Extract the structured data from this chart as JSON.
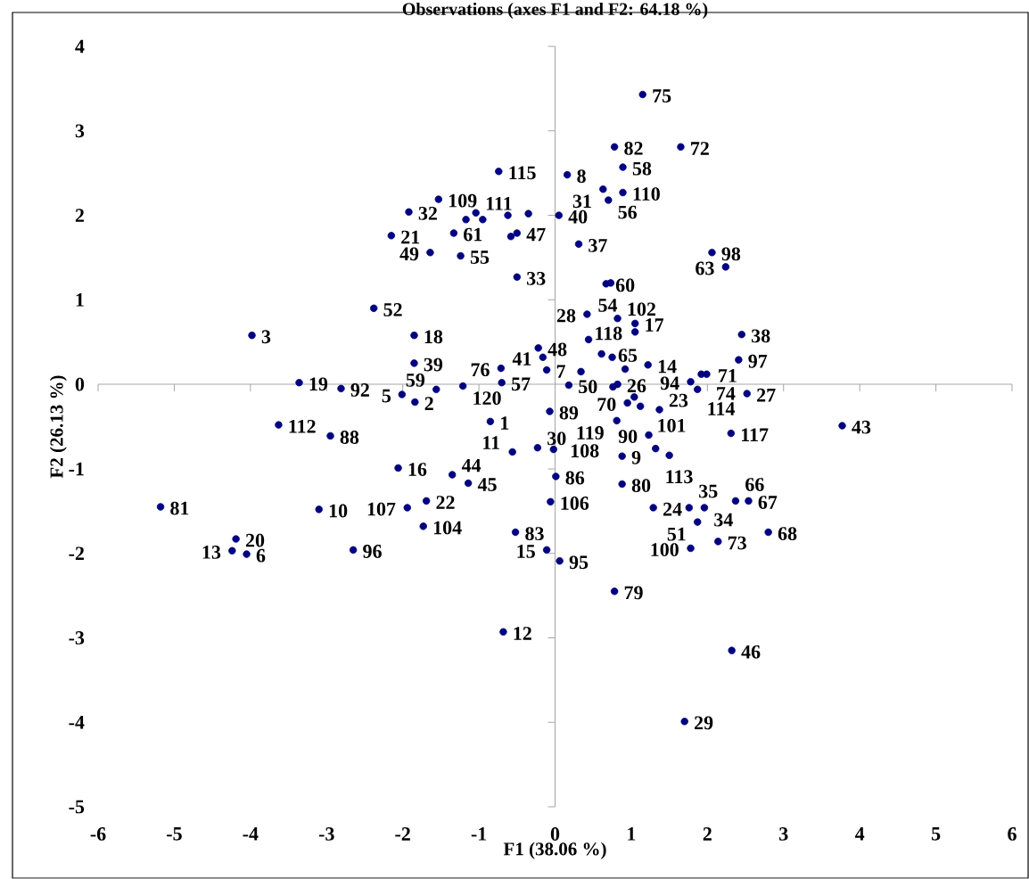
{
  "chart_data": {
    "type": "scatter",
    "title": "Observations (axes F1 and F2: 64.18 %)",
    "xlabel": "F1 (38.06 %)",
    "ylabel": "F2 (26.13 %)",
    "x": [
      1.15,
      0.78,
      1.65,
      -0.74,
      0.16,
      0.89,
      0.63,
      0.7,
      0.89,
      -1.53,
      -1.92,
      -1.04,
      0.05,
      -0.5,
      -1.33,
      -2.15,
      -1.64,
      -1.24,
      0.31,
      -0.5,
      2.06,
      2.24,
      0.67,
      -2.38,
      -3.98,
      -1.85,
      -1.85,
      -3.36,
      -2.81,
      -2.01,
      -1.84,
      -1.56,
      -1.21,
      -0.7,
      -3.63,
      -2.95,
      -2.06,
      -1.35,
      -1.14,
      -5.18,
      -3.1,
      -1.94,
      -1.69,
      -1.73,
      -4.19,
      -4.24,
      -4.05,
      -2.65,
      -0.22,
      -0.16,
      -0.11,
      -0.71,
      0.42,
      0.82,
      1.05,
      1.05,
      0.44,
      2.45,
      2.41,
      0.61,
      1.22,
      1.92,
      1.99,
      1.78,
      1.87,
      2.52,
      0.18,
      0.82,
      0.95,
      1.12,
      1.37,
      -0.07,
      -0.85,
      0.81,
      2.31,
      3.77,
      1.23,
      1.32,
      0.88,
      -0.56,
      -0.23,
      -0.02,
      0.01,
      0.88,
      -0.06,
      -0.52,
      -0.11,
      0.06,
      0.78,
      -0.68,
      2.32,
      1.7,
      1.29,
      1.76,
      1.96,
      1.87,
      2.37,
      2.54,
      1.78,
      2.14,
      2.8,
      -1.17,
      -0.95,
      -0.62,
      -0.35,
      -0.58,
      0.73,
      0.92,
      0.75,
      0.34,
      1.04,
      0.76,
      1.5
    ],
    "values": [
      3.43,
      2.81,
      2.81,
      2.52,
      2.48,
      2.57,
      2.31,
      2.18,
      2.27,
      2.19,
      2.04,
      2.03,
      2.0,
      1.79,
      1.79,
      1.76,
      1.56,
      1.52,
      1.66,
      1.27,
      1.56,
      1.39,
      1.19,
      0.9,
      0.58,
      0.58,
      0.25,
      0.02,
      -0.05,
      -0.12,
      -0.21,
      -0.06,
      -0.02,
      0.02,
      -0.48,
      -0.61,
      -0.99,
      -1.07,
      -1.17,
      -1.45,
      -1.48,
      -1.46,
      -1.38,
      -1.68,
      -1.83,
      -1.97,
      -2.01,
      -1.96,
      0.43,
      0.32,
      0.17,
      0.19,
      0.83,
      0.78,
      0.72,
      0.62,
      0.53,
      0.59,
      0.29,
      0.36,
      0.23,
      0.12,
      0.12,
      0.03,
      -0.06,
      -0.11,
      -0.01,
      0.0,
      -0.22,
      -0.26,
      -0.3,
      -0.32,
      -0.44,
      -0.43,
      -0.58,
      -0.49,
      -0.6,
      -0.76,
      -0.85,
      -0.8,
      -0.75,
      -0.77,
      -1.09,
      -1.18,
      -1.39,
      -1.75,
      -1.96,
      -2.09,
      -2.45,
      -2.93,
      -3.15,
      -3.99,
      -1.46,
      -1.46,
      -1.46,
      -1.63,
      -1.38,
      -1.38,
      -1.94,
      -1.86,
      -1.75,
      1.95,
      1.95,
      2.0,
      2.02,
      1.75,
      1.2,
      0.18,
      0.32,
      0.15,
      -0.15,
      -0.03,
      -0.84
    ],
    "color": "#000080",
    "marker": "circle",
    "xlim": [
      -6,
      6
    ],
    "ylim": [
      -5,
      4
    ],
    "xticks": [
      -6,
      -5,
      -4,
      -3,
      -2,
      -1,
      0,
      1,
      2,
      3,
      4,
      5,
      6
    ],
    "yticks": [
      -5,
      -4,
      -3,
      -2,
      -1,
      0,
      1,
      2,
      3,
      4
    ],
    "annotations": [
      {
        "text": "75",
        "x": 1.15,
        "y": 3.43
      },
      {
        "text": "82",
        "x": 0.78,
        "y": 2.81
      },
      {
        "text": "72",
        "x": 1.65,
        "y": 2.81
      },
      {
        "text": "115",
        "x": -0.74,
        "y": 2.52
      },
      {
        "text": "8",
        "x": 0.16,
        "y": 2.48
      },
      {
        "text": "58",
        "x": 0.89,
        "y": 2.57
      },
      {
        "text": "31",
        "x": 0.63,
        "y": 2.31
      },
      {
        "text": "56",
        "x": 0.7,
        "y": 2.18
      },
      {
        "text": "110",
        "x": 0.89,
        "y": 2.27
      },
      {
        "text": "109",
        "x": -1.53,
        "y": 2.19
      },
      {
        "text": "32",
        "x": -1.92,
        "y": 2.04
      },
      {
        "text": "111",
        "x": -1.04,
        "y": 2.03
      },
      {
        "text": "40",
        "x": 0.05,
        "y": 2.0
      },
      {
        "text": "47",
        "x": -0.5,
        "y": 1.79
      },
      {
        "text": "61",
        "x": -1.33,
        "y": 1.79
      },
      {
        "text": "21",
        "x": -2.15,
        "y": 1.76
      },
      {
        "text": "49",
        "x": -1.64,
        "y": 1.56
      },
      {
        "text": "55",
        "x": -1.24,
        "y": 1.52
      },
      {
        "text": "37",
        "x": 0.31,
        "y": 1.66
      },
      {
        "text": "33",
        "x": -0.5,
        "y": 1.27
      },
      {
        "text": "98",
        "x": 2.06,
        "y": 1.56
      },
      {
        "text": "63",
        "x": 2.24,
        "y": 1.39
      },
      {
        "text": "60",
        "x": 0.67,
        "y": 1.19
      },
      {
        "text": "52",
        "x": -2.38,
        "y": 0.9
      },
      {
        "text": "3",
        "x": -3.98,
        "y": 0.58
      },
      {
        "text": "18",
        "x": -1.85,
        "y": 0.58
      },
      {
        "text": "39",
        "x": -1.85,
        "y": 0.25
      },
      {
        "text": "19",
        "x": -3.36,
        "y": 0.02
      },
      {
        "text": "92",
        "x": -2.81,
        "y": -0.05
      },
      {
        "text": "5",
        "x": -2.01,
        "y": -0.12
      },
      {
        "text": "2",
        "x": -1.84,
        "y": -0.21
      },
      {
        "text": "59",
        "x": -1.56,
        "y": -0.06
      },
      {
        "text": "120",
        "x": -1.21,
        "y": -0.02
      },
      {
        "text": "57",
        "x": -0.7,
        "y": 0.02
      },
      {
        "text": "112",
        "x": -3.63,
        "y": -0.48
      },
      {
        "text": "88",
        "x": -2.95,
        "y": -0.61
      },
      {
        "text": "16",
        "x": -2.06,
        "y": -0.99
      },
      {
        "text": "44",
        "x": -1.35,
        "y": -1.07
      },
      {
        "text": "45",
        "x": -1.14,
        "y": -1.17
      },
      {
        "text": "81",
        "x": -5.18,
        "y": -1.45
      },
      {
        "text": "10",
        "x": -3.1,
        "y": -1.48
      },
      {
        "text": "107",
        "x": -1.94,
        "y": -1.46
      },
      {
        "text": "22",
        "x": -1.69,
        "y": -1.38
      },
      {
        "text": "104",
        "x": -1.73,
        "y": -1.68
      },
      {
        "text": "20",
        "x": -4.19,
        "y": -1.83
      },
      {
        "text": "13",
        "x": -4.24,
        "y": -1.97
      },
      {
        "text": "6",
        "x": -4.05,
        "y": -2.01
      },
      {
        "text": "96",
        "x": -2.65,
        "y": -1.96
      },
      {
        "text": "48",
        "x": -0.22,
        "y": 0.43
      },
      {
        "text": "41",
        "x": -0.16,
        "y": 0.32
      },
      {
        "text": "7",
        "x": -0.11,
        "y": 0.17
      },
      {
        "text": "76",
        "x": -0.71,
        "y": 0.19
      },
      {
        "text": "28",
        "x": 0.42,
        "y": 0.83
      },
      {
        "text": "102",
        "x": 0.82,
        "y": 0.78
      },
      {
        "text": "17",
        "x": 1.05,
        "y": 0.72
      },
      {
        "text": "118",
        "x": 1.05,
        "y": 0.62
      },
      {
        "text": "54",
        "x": 0.44,
        "y": 0.53
      },
      {
        "text": "38",
        "x": 2.45,
        "y": 0.59
      },
      {
        "text": "97",
        "x": 2.41,
        "y": 0.29
      },
      {
        "text": "65",
        "x": 0.61,
        "y": 0.36
      },
      {
        "text": "14",
        "x": 1.22,
        "y": 0.23
      },
      {
        "text": "71",
        "x": 1.92,
        "y": 0.12
      },
      {
        "text": "74",
        "x": 1.99,
        "y": 0.12
      },
      {
        "text": "94",
        "x": 1.78,
        "y": 0.03
      },
      {
        "text": "114",
        "x": 1.87,
        "y": -0.06
      },
      {
        "text": "27",
        "x": 2.52,
        "y": -0.11
      },
      {
        "text": "50",
        "x": 0.18,
        "y": -0.01
      },
      {
        "text": "26",
        "x": 0.82,
        "y": 0.0
      },
      {
        "text": "70",
        "x": 0.95,
        "y": -0.22
      },
      {
        "text": "101",
        "x": 1.12,
        "y": -0.26
      },
      {
        "text": "23",
        "x": 1.37,
        "y": -0.3
      },
      {
        "text": "89",
        "x": -0.07,
        "y": -0.32
      },
      {
        "text": "1",
        "x": -0.85,
        "y": -0.44
      },
      {
        "text": "119",
        "x": 0.81,
        "y": -0.43
      },
      {
        "text": "117",
        "x": 2.31,
        "y": -0.58
      },
      {
        "text": "43",
        "x": 3.77,
        "y": -0.49
      },
      {
        "text": "90",
        "x": 1.23,
        "y": -0.6
      },
      {
        "text": "113",
        "x": 1.32,
        "y": -0.76
      },
      {
        "text": "9",
        "x": 0.88,
        "y": -0.85
      },
      {
        "text": "11",
        "x": -0.56,
        "y": -0.8
      },
      {
        "text": "30",
        "x": -0.23,
        "y": -0.75
      },
      {
        "text": "108",
        "x": -0.02,
        "y": -0.77
      },
      {
        "text": "86",
        "x": 0.01,
        "y": -1.09
      },
      {
        "text": "80",
        "x": 0.88,
        "y": -1.18
      },
      {
        "text": "106",
        "x": -0.06,
        "y": -1.39
      },
      {
        "text": "83",
        "x": -0.52,
        "y": -1.75
      },
      {
        "text": "15",
        "x": -0.11,
        "y": -1.96
      },
      {
        "text": "95",
        "x": 0.06,
        "y": -2.09
      },
      {
        "text": "79",
        "x": 0.78,
        "y": -2.45
      },
      {
        "text": "12",
        "x": -0.68,
        "y": -2.93
      },
      {
        "text": "46",
        "x": 2.32,
        "y": -3.15
      },
      {
        "text": "29",
        "x": 1.7,
        "y": -3.99
      },
      {
        "text": "24",
        "x": 1.29,
        "y": -1.46
      },
      {
        "text": "35",
        "x": 1.76,
        "y": -1.46
      },
      {
        "text": "34",
        "x": 1.96,
        "y": -1.46
      },
      {
        "text": "51",
        "x": 1.87,
        "y": -1.63
      },
      {
        "text": "66",
        "x": 2.37,
        "y": -1.38
      },
      {
        "text": "67",
        "x": 2.54,
        "y": -1.38
      },
      {
        "text": "100",
        "x": 1.78,
        "y": -1.94
      },
      {
        "text": "73",
        "x": 2.14,
        "y": -1.86
      },
      {
        "text": "68",
        "x": 2.8,
        "y": -1.75
      }
    ]
  }
}
